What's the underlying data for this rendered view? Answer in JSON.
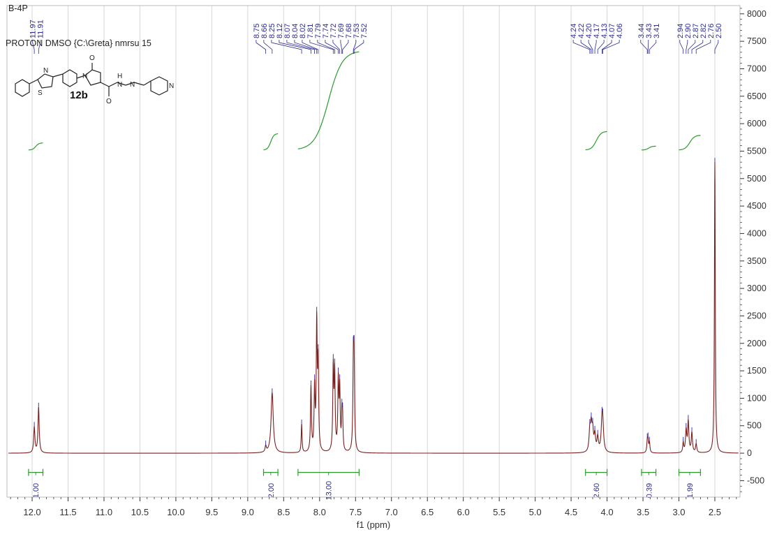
{
  "header": {
    "title": "B-4P",
    "subtitle": "PROTON DMSO {C:\\Greta} nmrsu 15",
    "compound_label": "12b"
  },
  "chart_data": {
    "type": "line",
    "xlabel": "f1 (ppm)",
    "ylabel": "",
    "xlim": [
      12.35,
      2.15
    ],
    "ylim": [
      -800,
      8150
    ],
    "x_reversed": true,
    "grid": true,
    "x_ticks": [
      12.0,
      11.5,
      11.0,
      10.5,
      10.0,
      9.5,
      9.0,
      8.5,
      8.0,
      7.5,
      7.0,
      6.5,
      6.0,
      5.5,
      5.0,
      4.5,
      4.0,
      3.5,
      3.0,
      2.5
    ],
    "x_tick_labels": [
      "12.0",
      "11.5",
      "11.0",
      "10.5",
      "10.0",
      "9.5",
      "9.0",
      "8.5",
      "8.0",
      "7.5",
      "7.0",
      "6.5",
      "6.0",
      "5.5",
      "5.0",
      "4.5",
      "4.0",
      "3.5",
      "3.0",
      "2.5"
    ],
    "y_ticks": [
      -500,
      0,
      500,
      1000,
      1500,
      2000,
      2500,
      3000,
      3500,
      4000,
      4500,
      5000,
      5500,
      6000,
      6500,
      7000,
      7500,
      8000
    ],
    "y_tick_labels": [
      "-500",
      "0",
      "500",
      "1000",
      "1500",
      "2000",
      "2500",
      "3000",
      "3500",
      "4000",
      "4500",
      "5000",
      "5500",
      "6000",
      "6500",
      "7000",
      "7500",
      "8000"
    ],
    "peaks": [
      {
        "ppm": 11.97,
        "height": 470,
        "width": 0.01
      },
      {
        "ppm": 11.91,
        "height": 830,
        "width": 0.01
      },
      {
        "ppm": 8.75,
        "height": 110,
        "width": 0.01
      },
      {
        "ppm": 8.66,
        "height": 1100,
        "width": 0.018
      },
      {
        "ppm": 8.25,
        "height": 520,
        "width": 0.007
      },
      {
        "ppm": 8.12,
        "height": 1180,
        "width": 0.008
      },
      {
        "ppm": 8.07,
        "height": 1130,
        "width": 0.008
      },
      {
        "ppm": 8.04,
        "height": 2280,
        "width": 0.008
      },
      {
        "ppm": 8.02,
        "height": 1550,
        "width": 0.008
      },
      {
        "ppm": 7.81,
        "height": 1500,
        "width": 0.008
      },
      {
        "ppm": 7.79,
        "height": 1380,
        "width": 0.008
      },
      {
        "ppm": 7.74,
        "height": 1250,
        "width": 0.008
      },
      {
        "ppm": 7.72,
        "height": 1100,
        "width": 0.008
      },
      {
        "ppm": 7.69,
        "height": 600,
        "width": 0.007
      },
      {
        "ppm": 7.68,
        "height": 560,
        "width": 0.007
      },
      {
        "ppm": 7.53,
        "height": 1450,
        "width": 0.008
      },
      {
        "ppm": 7.52,
        "height": 1500,
        "width": 0.008
      },
      {
        "ppm": 4.24,
        "height": 380,
        "width": 0.012
      },
      {
        "ppm": 4.22,
        "height": 440,
        "width": 0.012
      },
      {
        "ppm": 4.2,
        "height": 360,
        "width": 0.012
      },
      {
        "ppm": 4.17,
        "height": 300,
        "width": 0.012
      },
      {
        "ppm": 4.13,
        "height": 260,
        "width": 0.012
      },
      {
        "ppm": 4.07,
        "height": 480,
        "width": 0.014
      },
      {
        "ppm": 4.06,
        "height": 400,
        "width": 0.014
      },
      {
        "ppm": 3.44,
        "height": 190,
        "width": 0.008
      },
      {
        "ppm": 3.43,
        "height": 200,
        "width": 0.008
      },
      {
        "ppm": 3.41,
        "height": 180,
        "width": 0.008
      },
      {
        "ppm": 2.94,
        "height": 180,
        "width": 0.008
      },
      {
        "ppm": 2.9,
        "height": 400,
        "width": 0.01
      },
      {
        "ppm": 2.87,
        "height": 560,
        "width": 0.01
      },
      {
        "ppm": 2.82,
        "height": 360,
        "width": 0.01
      },
      {
        "ppm": 2.76,
        "height": 160,
        "width": 0.01
      },
      {
        "ppm": 2.5,
        "height": 5300,
        "width": 0.007
      }
    ],
    "peak_labels": [
      {
        "group": [
          11.97,
          11.91
        ],
        "labels": [
          "11.97",
          "11.91"
        ]
      },
      {
        "group": [
          8.75,
          8.66,
          8.25,
          8.12,
          8.07,
          8.04,
          8.02,
          7.81,
          7.79,
          7.74,
          7.72,
          7.69,
          7.68,
          7.53,
          7.52
        ],
        "labels": [
          "8.75",
          "8.66",
          "8.25",
          "8.12",
          "8.07",
          "8.04",
          "8.02",
          "7.81",
          "7.79",
          "7.74",
          "7.72",
          "7.69",
          "7.68",
          "7.53",
          "7.52"
        ]
      },
      {
        "group": [
          4.24,
          4.22,
          4.2,
          4.17,
          4.13,
          4.07,
          4.06
        ],
        "labels": [
          "4.24",
          "4.22",
          "4.20",
          "4.17",
          "4.13",
          "4.07",
          "4.06"
        ]
      },
      {
        "group": [
          3.44,
          3.43,
          3.41
        ],
        "labels": [
          "3.44",
          "3.43",
          "3.41"
        ]
      },
      {
        "group": [
          2.94,
          2.9,
          2.87,
          2.82,
          2.76,
          2.5
        ],
        "labels": [
          "2.94",
          "2.90",
          "2.87",
          "2.82",
          "2.76",
          "2.50"
        ]
      }
    ],
    "integrals": [
      {
        "from": 12.05,
        "to": 11.85,
        "value": "1.00",
        "y_start": 5520,
        "y_end": 5650
      },
      {
        "from": 8.78,
        "to": 8.58,
        "value": "2.00",
        "y_start": 5520,
        "y_end": 5820
      },
      {
        "from": 8.3,
        "to": 7.45,
        "value": "13.00",
        "y_start": 5520,
        "y_end": 7330
      },
      {
        "from": 4.3,
        "to": 4.0,
        "value": "2.60",
        "y_start": 5520,
        "y_end": 5860
      },
      {
        "from": 3.52,
        "to": 3.32,
        "value": "0.39",
        "y_start": 5520,
        "y_end": 5590
      },
      {
        "from": 3.0,
        "to": 2.7,
        "value": "1.99",
        "y_start": 5520,
        "y_end": 5790
      }
    ],
    "colors": {
      "spectrum": "#7a1f1f",
      "spectrum_cap": "#3b3bbf",
      "integral": "#2e9a2e",
      "peak_label": "#2b2b8f",
      "grid": "#d7d7d7",
      "axis": "#333333"
    }
  }
}
